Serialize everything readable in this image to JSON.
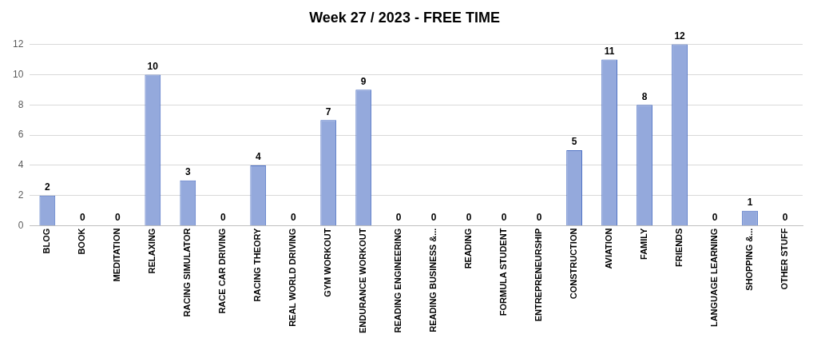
{
  "chart_data": {
    "type": "bar",
    "title": "Week 27 / 2023 - FREE TIME",
    "categories": [
      "BLOG",
      "BOOK",
      "MEDITATION",
      "RELAXING",
      "RACING SIMULATOR",
      "RACE CAR DRIVING",
      "RACING THEORY",
      "REAL WORLD DRIVING",
      "GYM WORKOUT",
      "ENDURANCE WORKOUT",
      "READING ENGINEERING",
      "READING BUSINESS &...",
      "READING",
      "FORMULA STUDENT",
      "ENTREPRENEURSHIP",
      "CONSTRUCTION",
      "AVIATION",
      "FAMILY",
      "FRIENDS",
      "LANGUAGE LEARNING",
      "SHOPPING &...",
      "OTHER STUFF"
    ],
    "values": [
      2,
      0,
      0,
      10,
      3,
      0,
      4,
      0,
      7,
      9,
      0,
      0,
      0,
      0,
      0,
      5,
      11,
      8,
      12,
      0,
      1,
      0
    ],
    "color": "#94a9dc",
    "ylim": [
      0,
      12
    ],
    "yticks": [
      0,
      2,
      4,
      6,
      8,
      10,
      12
    ],
    "grid": "y",
    "data_labels": true,
    "legend": false
  }
}
